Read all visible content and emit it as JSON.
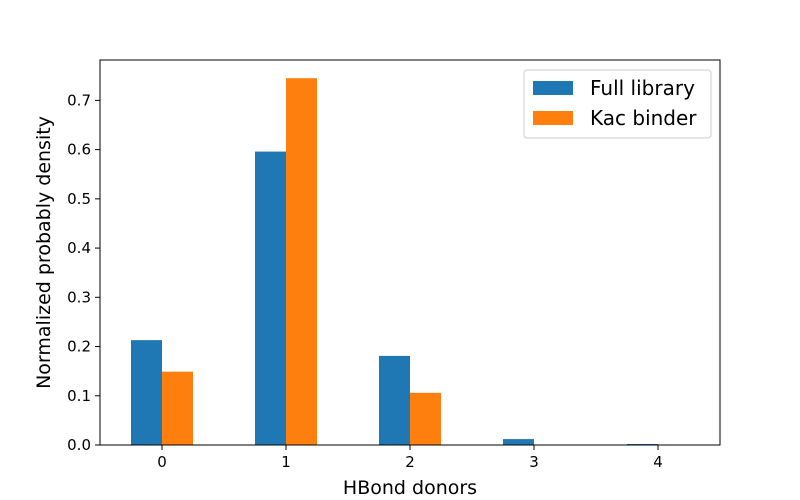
{
  "chart_data": {
    "type": "bar",
    "categories": [
      "0",
      "1",
      "2",
      "3",
      "4"
    ],
    "series": [
      {
        "name": "Full library",
        "values": [
          0.213,
          0.596,
          0.181,
          0.012,
          0.002
        ],
        "color": "#1f77b4"
      },
      {
        "name": "Kac binder",
        "values": [
          0.149,
          0.745,
          0.106,
          0.0,
          0.0
        ],
        "color": "#ff7f0e"
      }
    ],
    "title": "",
    "xlabel": "HBond donors",
    "ylabel": "Normalized probably density",
    "ylim": [
      0,
      0.782
    ],
    "yticks": [
      0.0,
      0.1,
      0.2,
      0.3,
      0.4,
      0.5,
      0.6,
      0.7
    ],
    "ytick_labels": [
      "0.0",
      "0.1",
      "0.2",
      "0.3",
      "0.4",
      "0.5",
      "0.6",
      "0.7"
    ],
    "grid": false,
    "legend_position": "top-right"
  }
}
